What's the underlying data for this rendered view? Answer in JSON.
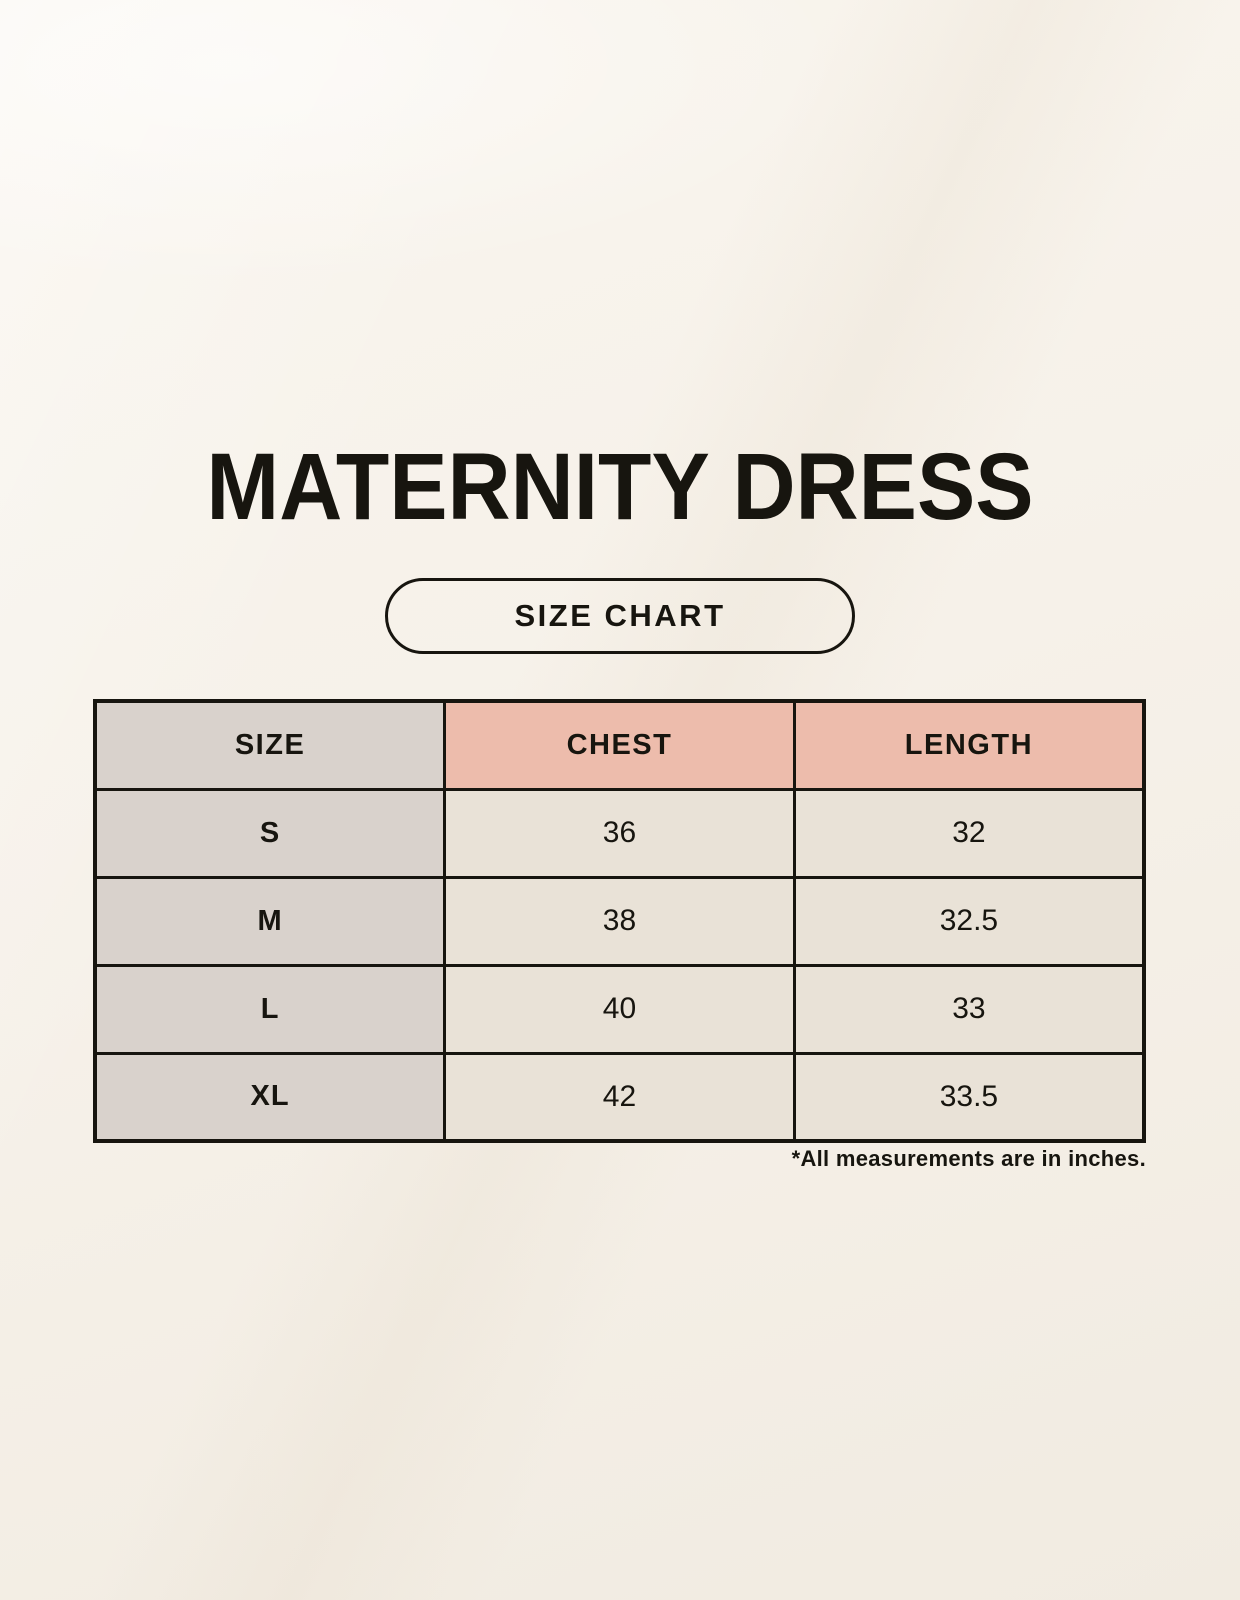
{
  "page": {
    "title": "MATERNITY DRESS",
    "badge_label": "SIZE CHART",
    "note": "*All measurements are in inches."
  },
  "size_chart": {
    "columns": [
      "SIZE",
      "CHEST",
      "LENGTH"
    ],
    "rows": [
      {
        "size": "S",
        "chest": "36",
        "length": "32"
      },
      {
        "size": "M",
        "chest": "38",
        "length": "32.5"
      },
      {
        "size": "L",
        "chest": "40",
        "length": "33"
      },
      {
        "size": "XL",
        "chest": "42",
        "length": "33.5"
      }
    ]
  },
  "colors": {
    "background": "#F6F1E9",
    "ink": "#17150F",
    "border": "#17150F",
    "header-pink": "#EDBCAC",
    "size-taupe": "#D9D2CC",
    "cell-cream": "#E9E2D7"
  }
}
